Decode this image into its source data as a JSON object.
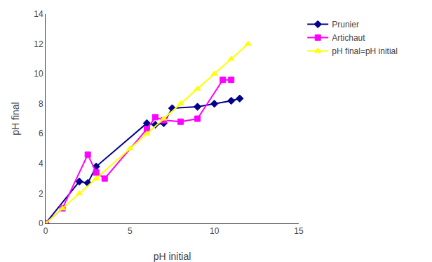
{
  "chart_data": {
    "type": "line",
    "xlabel": "pH initial",
    "ylabel": "pH final",
    "series": [
      {
        "name": "Prunier",
        "color": "#00008B",
        "marker": "diamond",
        "line_style": "solid",
        "x": [
          0,
          2,
          2.5,
          3,
          6,
          6.5,
          7,
          7.5,
          9,
          10,
          11,
          11.5
        ],
        "values": [
          0,
          2.8,
          2.7,
          3.8,
          6.7,
          6.6,
          6.7,
          7.7,
          7.8,
          8.0,
          8.2,
          8.35
        ]
      },
      {
        "name": "Artichaut",
        "color": "#FF00FF",
        "marker": "square",
        "line_style": "solid",
        "x": [
          0,
          1,
          2.5,
          3,
          3.5,
          6,
          6.5,
          7,
          8,
          9,
          10.5,
          11
        ],
        "values": [
          0,
          1.0,
          4.6,
          3.4,
          3.0,
          6.3,
          7.1,
          6.9,
          6.8,
          7.0,
          9.6,
          9.6
        ]
      },
      {
        "name": "pH final=pH initial",
        "color": "#FFFF00",
        "marker": "triangle-up",
        "line_style": "solid",
        "x": [
          0,
          1,
          2,
          3,
          5,
          6,
          7,
          8,
          9,
          10,
          11,
          12
        ],
        "values": [
          0,
          1,
          2,
          3,
          5,
          6,
          7,
          8,
          9,
          10,
          11,
          12
        ]
      }
    ],
    "xlim": [
      0,
      15
    ],
    "ylim": [
      0,
      14
    ],
    "xticks": [
      0,
      5,
      10,
      15
    ],
    "yticks": [
      0,
      2,
      4,
      6,
      8,
      10,
      12,
      14
    ],
    "grid": false,
    "legend": "right"
  }
}
